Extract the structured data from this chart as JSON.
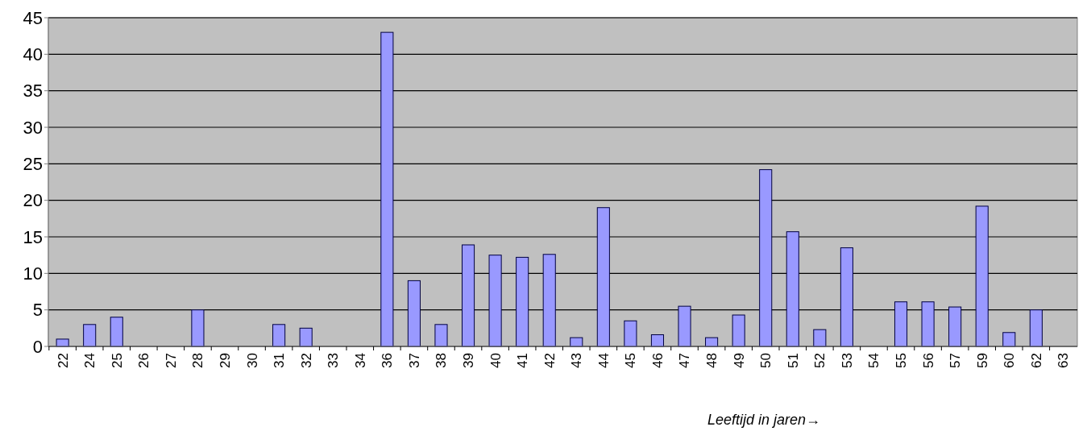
{
  "chart_data": {
    "type": "bar",
    "xlabel": "Leeftijd in jaren→",
    "categories": [
      "22",
      "24",
      "25",
      "26",
      "27",
      "28",
      "29",
      "30",
      "31",
      "32",
      "33",
      "34",
      "36",
      "37",
      "38",
      "39",
      "40",
      "41",
      "42",
      "43",
      "44",
      "45",
      "46",
      "47",
      "48",
      "49",
      "50",
      "51",
      "52",
      "53",
      "54",
      "55",
      "56",
      "57",
      "59",
      "60",
      "62",
      "63"
    ],
    "values": [
      1,
      3,
      4,
      0,
      0,
      5,
      0,
      0,
      3,
      2.5,
      0,
      0,
      43,
      9,
      3,
      13.9,
      12.5,
      12.2,
      12.6,
      1.2,
      19,
      3.5,
      1.6,
      5.5,
      1.2,
      4.3,
      24.2,
      15.7,
      2.3,
      13.5,
      0,
      6.1,
      6.1,
      5.4,
      19.2,
      1.9,
      5,
      0
    ],
    "color": "#9999ff",
    "ylim": [
      0,
      45
    ],
    "yticks": [
      0,
      5,
      10,
      15,
      20,
      25,
      30,
      35,
      40,
      45
    ],
    "grid": "y"
  }
}
